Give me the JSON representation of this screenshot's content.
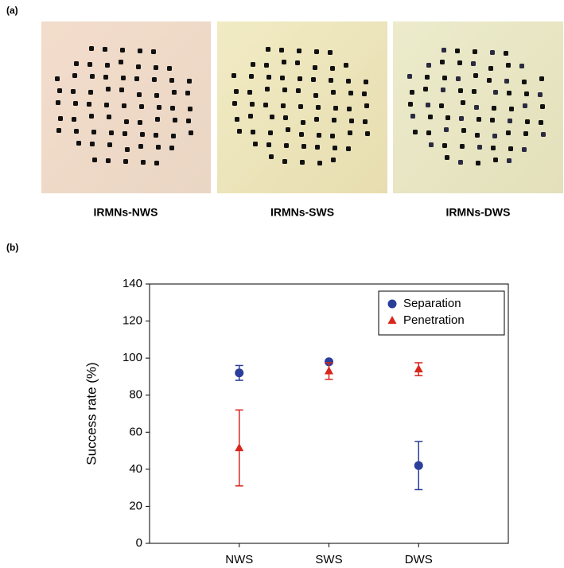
{
  "figure": {
    "panel_a": "(a)",
    "panel_b": "(b)",
    "captions": [
      "IRMNs-NWS",
      "IRMNs-SWS",
      "IRMNs-DWS"
    ]
  },
  "chart_data": {
    "type": "scatter",
    "ylabel": "Success rate (%)",
    "categories": [
      "NWS",
      "SWS",
      "DWS"
    ],
    "series": [
      {
        "name": "Separation",
        "color": "#2b3f9a",
        "marker": "circle",
        "values": [
          92,
          98,
          42
        ],
        "errors": [
          4,
          1,
          13
        ]
      },
      {
        "name": "Penetration",
        "color": "#d8261c",
        "marker": "triangle",
        "values": [
          51.5,
          93,
          94
        ],
        "errors": [
          20.5,
          4.5,
          3.5
        ]
      }
    ],
    "ylim": [
      0,
      140
    ],
    "yticks": [
      0,
      20,
      40,
      60,
      80,
      100,
      120,
      140
    ],
    "legend": "upper right"
  }
}
